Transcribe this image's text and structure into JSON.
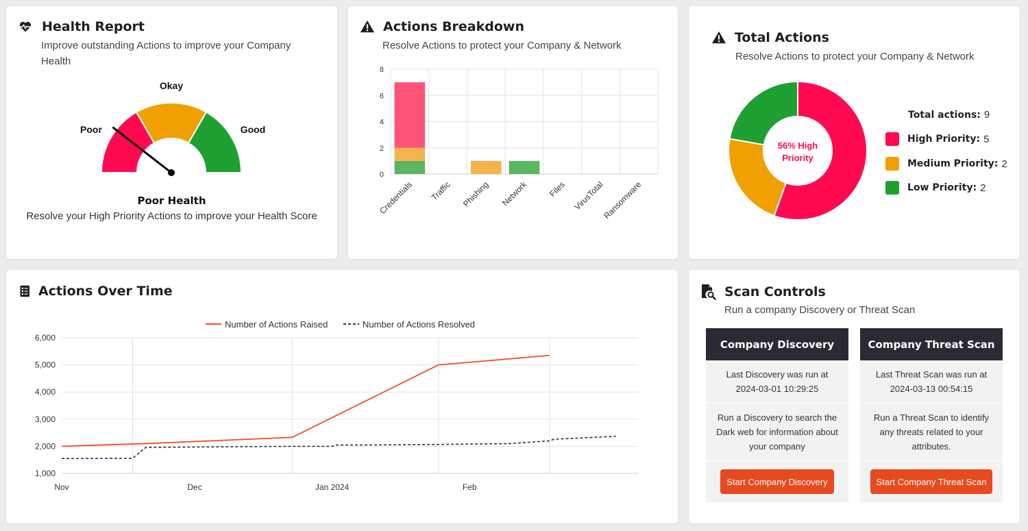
{
  "health": {
    "title": "Health Report",
    "subtitle_line1": "Improve outstanding Actions to improve your Company",
    "subtitle_line2": "Health",
    "gauge": {
      "labels": {
        "poor": "Poor",
        "okay": "Okay",
        "good": "Good"
      },
      "colors": {
        "poor": "#ff0a50",
        "okay": "#f0a000",
        "good": "#1ea032"
      },
      "needle_level": 0.2
    },
    "status": "Poor Health",
    "message": "Resolve your High Priority Actions to improve your Health Score"
  },
  "breakdown": {
    "title": "Actions Breakdown",
    "subtitle": "Resolve Actions to protect your Company & Network",
    "chart_data": {
      "type": "bar",
      "stacked": true,
      "categories": [
        "Credentials",
        "Traffic",
        "Phishing",
        "Network",
        "Files",
        "VirusTotal",
        "Ransomware"
      ],
      "series": [
        {
          "priority": "low",
          "color": "#5cb561",
          "values": [
            1,
            0,
            0,
            1,
            0,
            0,
            0
          ]
        },
        {
          "priority": "medium",
          "color": "#f4b34c",
          "values": [
            1,
            0,
            1,
            0,
            0,
            0,
            0
          ]
        },
        {
          "priority": "high",
          "color": "#fe5477",
          "values": [
            5,
            0,
            0,
            0,
            0,
            0,
            0
          ]
        }
      ],
      "ylim": [
        0,
        8
      ],
      "yticks": [
        0,
        2,
        4,
        6,
        8
      ],
      "grid": true
    }
  },
  "total": {
    "title": "Total Actions",
    "subtitle": "Resolve Actions to protect your Company & Network",
    "center_line1": "56% High",
    "center_line2": "Priority",
    "total_label": "Total actions:",
    "total_value": "9",
    "chart_data": {
      "type": "pie",
      "donut": true,
      "labels": [
        "High Priority",
        "Medium Priority",
        "Low Priority"
      ],
      "values": [
        5,
        2,
        2
      ],
      "colors": [
        "#ff0a50",
        "#f0a000",
        "#1ea032"
      ]
    },
    "legend": [
      {
        "label": "High Priority:",
        "value": "5",
        "color": "#ff0a50"
      },
      {
        "label": "Medium Priority:",
        "value": "2",
        "color": "#f0a000"
      },
      {
        "label": "Low Priority:",
        "value": "2",
        "color": "#1ea032"
      }
    ]
  },
  "over_time": {
    "title": "Actions Over Time",
    "chart_data": {
      "type": "line",
      "x_ticks": [
        "Nov",
        "Dec",
        "Jan 2024",
        "Feb"
      ],
      "ylim": [
        1000,
        6000
      ],
      "yticks": [
        "1,000",
        "2,000",
        "3,000",
        "4,000",
        "5,000",
        "6,000"
      ],
      "grid": true,
      "legend_position": "top",
      "series": [
        {
          "name": "Number of Actions Raised",
          "color": "#f04e23",
          "style": "solid",
          "points": [
            [
              "2023-11-01",
              2000
            ],
            [
              "2023-11-20",
              2100
            ],
            [
              "2023-12-23",
              2330
            ],
            [
              "2024-01-25",
              5000
            ],
            [
              "2024-02-19",
              5350
            ]
          ]
        },
        {
          "name": "Number of Actions Resolved",
          "color": "#333333",
          "style": "dashed",
          "points": [
            [
              "2023-11-01",
              1550
            ],
            [
              "2023-11-17",
              1560
            ],
            [
              "2023-11-20",
              1960
            ],
            [
              "2023-12-23",
              2000
            ],
            [
              "2024-01-01",
              2000
            ],
            [
              "2024-01-02",
              2050
            ],
            [
              "2024-01-10",
              2050
            ],
            [
              "2024-01-25",
              2070
            ],
            [
              "2024-02-10",
              2100
            ],
            [
              "2024-02-19",
              2200
            ],
            [
              "2024-02-20",
              2260
            ],
            [
              "2024-03-05",
              2370
            ]
          ]
        }
      ]
    }
  },
  "scan": {
    "title": "Scan Controls",
    "subtitle": "Run a company Discovery or Threat Scan",
    "discovery": {
      "header": "Company Discovery",
      "last_label": "Last Discovery was run at",
      "last_time": "2024-03-01 10:29:25",
      "desc_line1": "Run a Discovery to search the",
      "desc_line2": "Dark web for information about",
      "desc_line3": "your company",
      "button": "Start Company Discovery"
    },
    "threat": {
      "header": "Company Threat Scan",
      "last_label": "Last Threat Scan was run at",
      "last_time": "2024-03-13 00:54:15",
      "desc_line1": "Run a Threat Scan to identify",
      "desc_line2": "any threats related to your",
      "desc_line3": "attributes.",
      "button": "Start Company Threat Scan"
    }
  }
}
